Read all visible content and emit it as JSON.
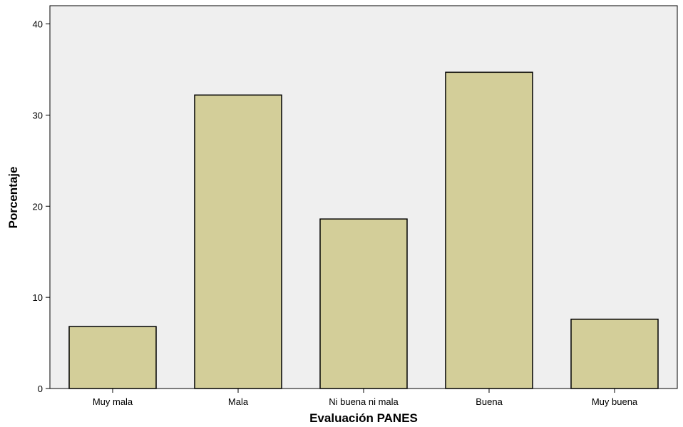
{
  "chart_data": {
    "type": "bar",
    "categories": [
      "Muy mala",
      "Mala",
      "Ni buena ni mala",
      "Buena",
      "Muy buena"
    ],
    "values": [
      6.8,
      32.2,
      18.6,
      34.7,
      7.6
    ],
    "xlabel": "Evaluación PANES",
    "ylabel": "Porcentaje",
    "ylim": [
      0,
      42
    ],
    "yticks": [
      0,
      10,
      20,
      30,
      40
    ],
    "grid": false,
    "legend": "none"
  },
  "colors": {
    "plot_background": "#efefef",
    "bar_fill": "#d3ce99",
    "bar_stroke": "#000000"
  }
}
